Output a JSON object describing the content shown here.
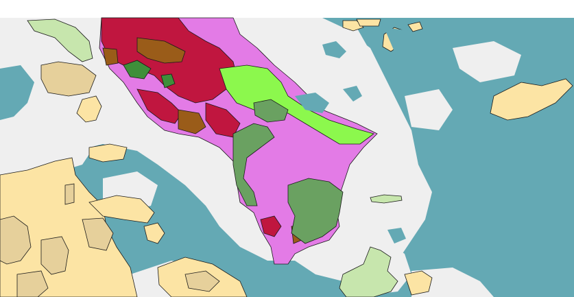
{
  "map": {
    "colors": {
      "water": "#64a9b4",
      "land_lightgray": "#efefef",
      "sand_yellow": "#fce4a4",
      "tan": "#e6d09b",
      "light_green": "#c7e6ad",
      "bright_green": "#8cf84d",
      "pink_magenta": "#e37be6",
      "crimson": "#c0163f",
      "brown": "#9a5c19",
      "forest_green": "#3e8f3a",
      "sage_green": "#6aa161",
      "outline": "#1a1a1a"
    }
  }
}
